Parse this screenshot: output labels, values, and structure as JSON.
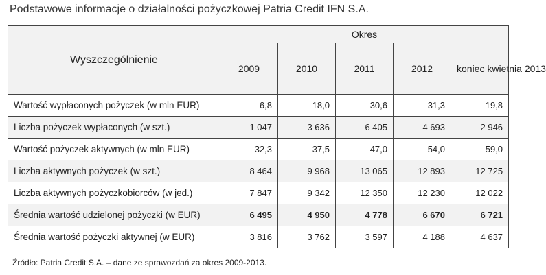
{
  "title": "Podstawowe informacje o działalności pożyczkowej Patria Credit IFN S.A.",
  "table": {
    "label_header": "Wyszczególnienie",
    "period_header": "Okres",
    "columns": [
      "2009",
      "2010",
      "2011",
      "2012",
      "koniec kwietnia 2013"
    ],
    "rows": [
      {
        "label": "Wartość wypłaconych pożyczek (w mln EUR)",
        "values": [
          "6,8",
          "18,0",
          "30,6",
          "31,3",
          "19,8"
        ]
      },
      {
        "label": "Liczba pożyczek wypłaconych  (w szt.)",
        "values": [
          "1 047",
          "3 636",
          "6 405",
          "4 693",
          "2 946"
        ]
      },
      {
        "label": "Wartość pożyczek aktywnych (w mln EUR)",
        "values": [
          "32,3",
          "37,5",
          "47,0",
          "54,0",
          "59,0"
        ]
      },
      {
        "label": "Liczba aktywnych pożyczek (w szt.)",
        "values": [
          "8 464",
          "9 968",
          "13 065",
          "12 893",
          "12 725"
        ]
      },
      {
        "label": "Liczba aktywnych pożyczkobiorców (w jed.)",
        "values": [
          "7 847",
          "9 342",
          "12 350",
          "12 230",
          "12 022"
        ]
      },
      {
        "label": "Średnia wartość udzielonej pożyczki (w EUR)",
        "values": [
          "6 495",
          "4 950",
          "4 778",
          "6 670",
          "6 721"
        ]
      },
      {
        "label": "Średnia wartość pożyczki aktywnej  (w EUR)",
        "values": [
          "3 816",
          "3 762",
          "3 597",
          "4 188",
          "4 637"
        ]
      }
    ]
  },
  "source": "Źródło: Patria Credit S.A. – dane ze sprawozdań za okres 2009-2013."
}
